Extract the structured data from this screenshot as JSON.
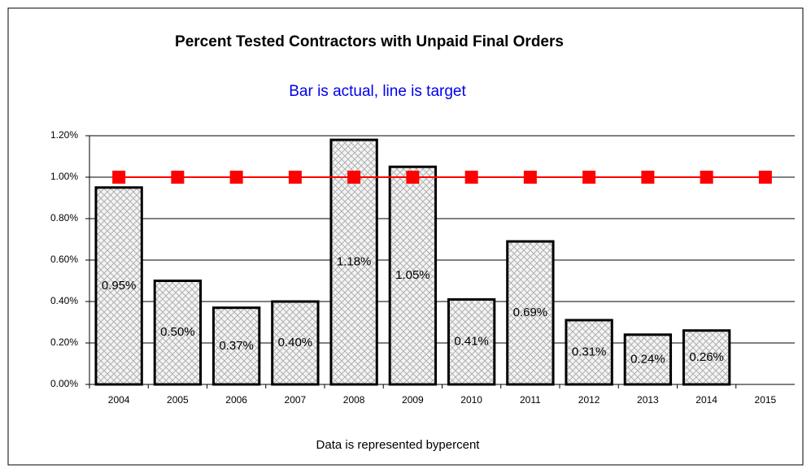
{
  "chart_data": {
    "type": "bar",
    "title": "Percent Tested Contractors with Unpaid Final Orders",
    "subtitle": "Bar is actual, line is target",
    "x_label": "Data is represented bypercent",
    "categories": [
      "2004",
      "2005",
      "2006",
      "2007",
      "2008",
      "2009",
      "2010",
      "2011",
      "2012",
      "2013",
      "2014",
      "2015"
    ],
    "series": [
      {
        "type": "bar",
        "color": "#b0b0b0",
        "values": [
          0.95,
          0.5,
          0.37,
          0.4,
          1.18,
          1.05,
          0.41,
          0.69,
          0.31,
          0.24,
          0.26,
          null
        ],
        "value_labels": [
          "0.95%",
          "0.50%",
          "0.37%",
          "0.40%",
          "1.18%",
          "1.05%",
          "0.41%",
          "0.69%",
          "0.31%",
          "0.24%",
          "0.26%",
          null
        ]
      },
      {
        "type": "line",
        "color": "#ff0000",
        "values": [
          1.0,
          1.0,
          1.0,
          1.0,
          1.0,
          1.0,
          1.0,
          1.0,
          1.0,
          1.0,
          1.0,
          1.0
        ]
      }
    ],
    "ylim": [
      0,
      1.2
    ],
    "yticks": [
      {
        "value": 0,
        "label": "0.00%"
      },
      {
        "value": 0.2,
        "label": "0.20%"
      },
      {
        "value": 0.4,
        "label": "0.40%"
      },
      {
        "value": 0.6,
        "label": "0.60%"
      },
      {
        "value": 0.8,
        "label": "0.80%"
      },
      {
        "value": 1.0,
        "label": "1.00%"
      },
      {
        "value": 1.2,
        "label": "1.20%"
      }
    ],
    "grid": true
  }
}
